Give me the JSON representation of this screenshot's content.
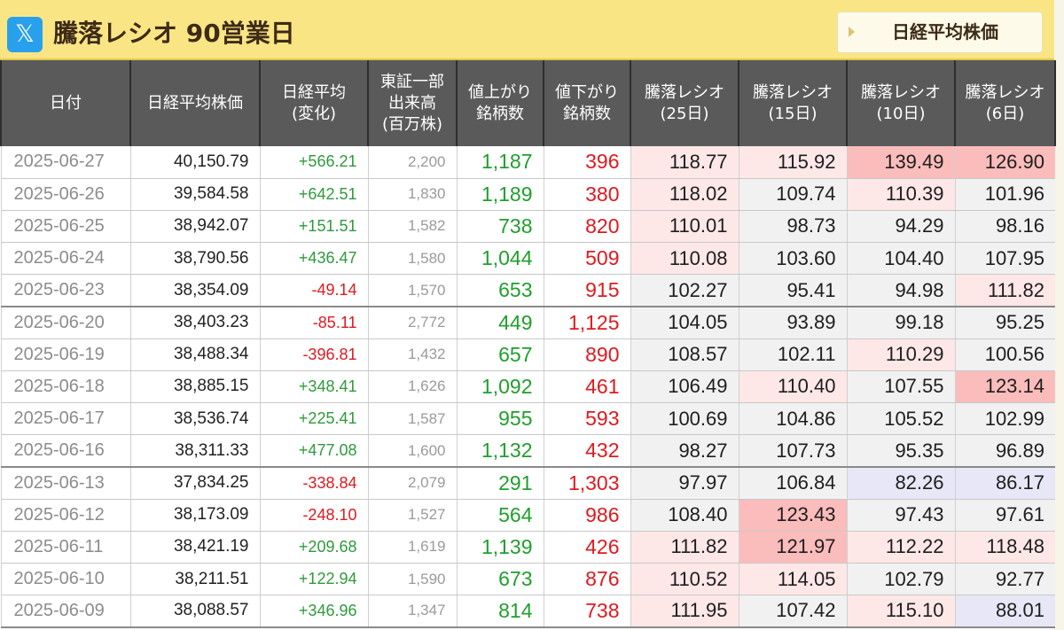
{
  "header": {
    "title": "騰落レシオ 90営業日",
    "nav_button_label": "日経平均株価",
    "share_icon": "x-logo-icon",
    "share_glyph": "𝕏"
  },
  "colors": {
    "header_bg": "#fae585",
    "table_header_bg": "#5a5a5a",
    "up_green": "#1f9f2c",
    "down_red": "#e0191f",
    "ratio_high_strong": "#fbbcbc",
    "ratio_high_light": "#fde7e7",
    "ratio_low": "#e7e7f8",
    "ratio_neutral": "#f1f1f1"
  },
  "columns": [
    "日付",
    "日経平均株価",
    "日経平均\n(変化)",
    "東証一部\n出来高\n(百万株)",
    "値上がり\n銘柄数",
    "値下がり\n銘柄数",
    "騰落レシオ\n(25日)",
    "騰落レシオ\n(15日)",
    "騰落レシオ\n(10日)",
    "騰落レシオ\n(6日)"
  ],
  "rows": [
    {
      "date": "2025-06-27",
      "nikkei": "40,150.79",
      "change": "+566.21",
      "volume": "2,200",
      "advances": "1,187",
      "declines": "396",
      "r25": "118.77",
      "r15": "115.92",
      "r10": "139.49",
      "r6": "126.90",
      "h25": "light",
      "h15": "light",
      "h10": "strong",
      "h6": "strong",
      "week_end": false
    },
    {
      "date": "2025-06-26",
      "nikkei": "39,584.58",
      "change": "+642.51",
      "volume": "1,830",
      "advances": "1,189",
      "declines": "380",
      "r25": "118.02",
      "r15": "109.74",
      "r10": "110.39",
      "r6": "101.96",
      "h25": "light",
      "h15": "neutral",
      "h10": "light",
      "h6": "neutral",
      "week_end": false
    },
    {
      "date": "2025-06-25",
      "nikkei": "38,942.07",
      "change": "+151.51",
      "volume": "1,582",
      "advances": "738",
      "declines": "820",
      "r25": "110.01",
      "r15": "98.73",
      "r10": "94.29",
      "r6": "98.16",
      "h25": "light",
      "h15": "neutral",
      "h10": "neutral",
      "h6": "neutral",
      "week_end": false
    },
    {
      "date": "2025-06-24",
      "nikkei": "38,790.56",
      "change": "+436.47",
      "volume": "1,580",
      "advances": "1,044",
      "declines": "509",
      "r25": "110.08",
      "r15": "103.60",
      "r10": "104.40",
      "r6": "107.95",
      "h25": "light",
      "h15": "neutral",
      "h10": "neutral",
      "h6": "neutral",
      "week_end": false
    },
    {
      "date": "2025-06-23",
      "nikkei": "38,354.09",
      "change": "-49.14",
      "volume": "1,570",
      "advances": "653",
      "declines": "915",
      "r25": "102.27",
      "r15": "95.41",
      "r10": "94.98",
      "r6": "111.82",
      "h25": "neutral",
      "h15": "neutral",
      "h10": "neutral",
      "h6": "light",
      "week_end": true
    },
    {
      "date": "2025-06-20",
      "nikkei": "38,403.23",
      "change": "-85.11",
      "volume": "2,772",
      "advances": "449",
      "declines": "1,125",
      "r25": "104.05",
      "r15": "93.89",
      "r10": "99.18",
      "r6": "95.25",
      "h25": "neutral",
      "h15": "neutral",
      "h10": "neutral",
      "h6": "neutral",
      "week_end": false
    },
    {
      "date": "2025-06-19",
      "nikkei": "38,488.34",
      "change": "-396.81",
      "volume": "1,432",
      "advances": "657",
      "declines": "890",
      "r25": "108.57",
      "r15": "102.11",
      "r10": "110.29",
      "r6": "100.56",
      "h25": "neutral",
      "h15": "neutral",
      "h10": "light",
      "h6": "neutral",
      "week_end": false
    },
    {
      "date": "2025-06-18",
      "nikkei": "38,885.15",
      "change": "+348.41",
      "volume": "1,626",
      "advances": "1,092",
      "declines": "461",
      "r25": "106.49",
      "r15": "110.40",
      "r10": "107.55",
      "r6": "123.14",
      "h25": "neutral",
      "h15": "light",
      "h10": "neutral",
      "h6": "strong",
      "week_end": false
    },
    {
      "date": "2025-06-17",
      "nikkei": "38,536.74",
      "change": "+225.41",
      "volume": "1,587",
      "advances": "955",
      "declines": "593",
      "r25": "100.69",
      "r15": "104.86",
      "r10": "105.52",
      "r6": "102.99",
      "h25": "neutral",
      "h15": "neutral",
      "h10": "neutral",
      "h6": "neutral",
      "week_end": false
    },
    {
      "date": "2025-06-16",
      "nikkei": "38,311.33",
      "change": "+477.08",
      "volume": "1,600",
      "advances": "1,132",
      "declines": "432",
      "r25": "98.27",
      "r15": "107.73",
      "r10": "95.35",
      "r6": "96.89",
      "h25": "neutral",
      "h15": "neutral",
      "h10": "neutral",
      "h6": "neutral",
      "week_end": true
    },
    {
      "date": "2025-06-13",
      "nikkei": "37,834.25",
      "change": "-338.84",
      "volume": "2,079",
      "advances": "291",
      "declines": "1,303",
      "r25": "97.97",
      "r15": "106.84",
      "r10": "82.26",
      "r6": "86.17",
      "h25": "neutral",
      "h15": "neutral",
      "h10": "low",
      "h6": "low",
      "week_end": false
    },
    {
      "date": "2025-06-12",
      "nikkei": "38,173.09",
      "change": "-248.10",
      "volume": "1,527",
      "advances": "564",
      "declines": "986",
      "r25": "108.40",
      "r15": "123.43",
      "r10": "97.43",
      "r6": "97.61",
      "h25": "neutral",
      "h15": "strong",
      "h10": "neutral",
      "h6": "neutral",
      "week_end": false
    },
    {
      "date": "2025-06-11",
      "nikkei": "38,421.19",
      "change": "+209.68",
      "volume": "1,619",
      "advances": "1,139",
      "declines": "426",
      "r25": "111.82",
      "r15": "121.97",
      "r10": "112.22",
      "r6": "118.48",
      "h25": "light",
      "h15": "strong",
      "h10": "light",
      "h6": "light",
      "week_end": false
    },
    {
      "date": "2025-06-10",
      "nikkei": "38,211.51",
      "change": "+122.94",
      "volume": "1,590",
      "advances": "673",
      "declines": "876",
      "r25": "110.52",
      "r15": "114.05",
      "r10": "102.79",
      "r6": "92.77",
      "h25": "light",
      "h15": "light",
      "h10": "neutral",
      "h6": "neutral",
      "week_end": false
    },
    {
      "date": "2025-06-09",
      "nikkei": "38,088.57",
      "change": "+346.96",
      "volume": "1,347",
      "advances": "814",
      "declines": "738",
      "r25": "111.95",
      "r15": "107.42",
      "r10": "115.10",
      "r6": "88.01",
      "h25": "light",
      "h15": "neutral",
      "h10": "light",
      "h6": "low",
      "week_end": true
    }
  ]
}
